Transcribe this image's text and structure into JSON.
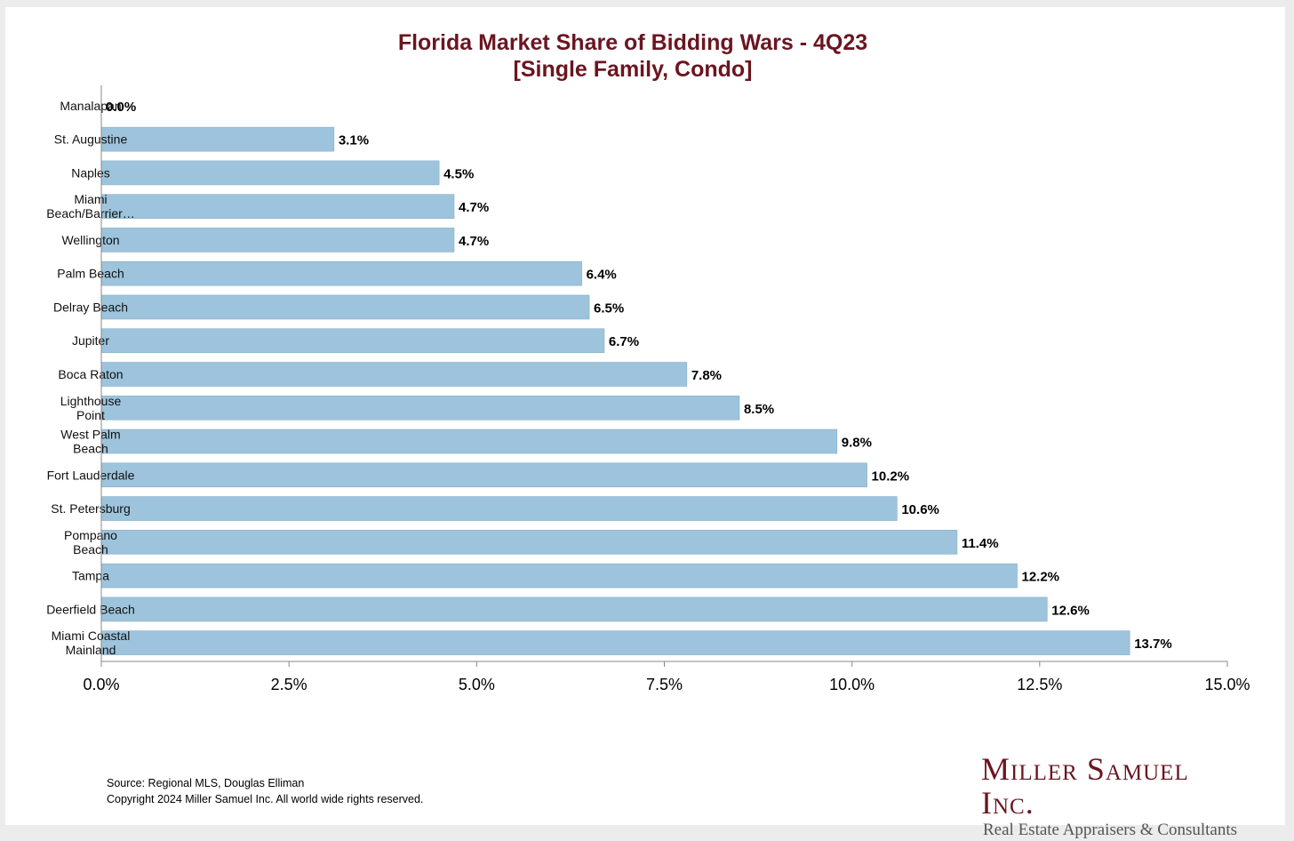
{
  "chart_data": {
    "type": "bar",
    "orientation": "horizontal",
    "title": [
      "Florida Market Share of Bidding Wars - 4Q23",
      "[Single Family, Condo]"
    ],
    "categories": [
      [
        "Manalapan"
      ],
      [
        "St. Augustine"
      ],
      [
        "Naples"
      ],
      [
        "Miami",
        "Beach/Barrier…"
      ],
      [
        "Wellington"
      ],
      [
        "Palm Beach"
      ],
      [
        "Delray Beach"
      ],
      [
        "Jupiter"
      ],
      [
        "Boca Raton"
      ],
      [
        "Lighthouse",
        "Point"
      ],
      [
        "West Palm",
        "Beach"
      ],
      [
        "Fort Lauderdale"
      ],
      [
        "St. Petersburg"
      ],
      [
        "Pompano",
        "Beach"
      ],
      [
        "Tampa"
      ],
      [
        "Deerfield Beach"
      ],
      [
        "Miami Coastal",
        "Mainland"
      ]
    ],
    "values": [
      0.0,
      3.1,
      4.5,
      4.7,
      4.7,
      6.4,
      6.5,
      6.7,
      7.8,
      8.5,
      9.8,
      10.2,
      10.6,
      11.4,
      12.2,
      12.6,
      13.7
    ],
    "value_labels": [
      "0.0%",
      "3.1%",
      "4.5%",
      "4.7%",
      "4.7%",
      "6.4%",
      "6.5%",
      "6.7%",
      "7.8%",
      "8.5%",
      "9.8%",
      "10.2%",
      "10.6%",
      "11.4%",
      "12.2%",
      "12.6%",
      "13.7%"
    ],
    "xlim": [
      0,
      15
    ],
    "xticks": [
      0,
      2.5,
      5,
      7.5,
      10,
      12.5,
      15
    ],
    "xtick_labels": [
      "0.0%",
      "2.5%",
      "5.0%",
      "7.5%",
      "10.0%",
      "12.5%",
      "15.0%"
    ],
    "xlabel": "",
    "ylabel": "",
    "bar_color": "#9dc4dc",
    "title_color": "#6b1520"
  },
  "footer": {
    "source": "Source: Regional MLS, Douglas Elliman",
    "copyright": "Copyright 2024 Miller Samuel Inc.  All world wide rights reserved."
  },
  "logo": {
    "name": "Miller Samuel Inc.",
    "tagline": "Real Estate Appraisers & Consultants"
  }
}
